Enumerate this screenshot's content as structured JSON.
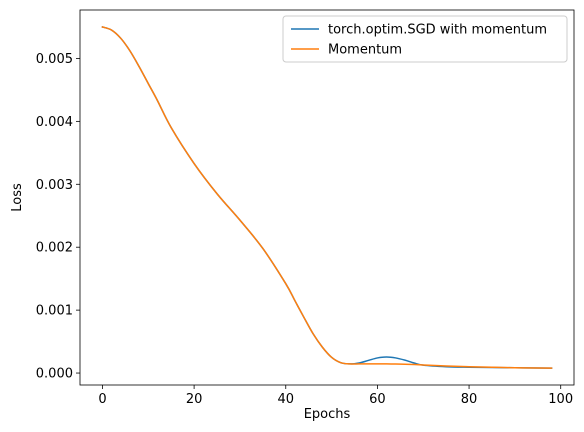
{
  "chart_data": {
    "type": "line",
    "title": "",
    "xlabel": "Epochs",
    "ylabel": "Loss",
    "xlim": [
      -4.9,
      102.9
    ],
    "ylim": [
      -0.00019,
      0.00577
    ],
    "xticks": [
      0,
      20,
      40,
      60,
      80,
      100
    ],
    "xtick_labels": [
      "0",
      "20",
      "40",
      "60",
      "80",
      "100"
    ],
    "yticks": [
      0.0,
      0.001,
      0.002,
      0.003,
      0.004,
      0.005
    ],
    "ytick_labels": [
      "0.000",
      "0.001",
      "0.002",
      "0.003",
      "0.004",
      "0.005"
    ],
    "grid": false,
    "legend_position": "top-right",
    "series": [
      {
        "name": "torch.optim.SGD with momentum",
        "color": "#1f77b4",
        "x": [
          0,
          2,
          4,
          6,
          8,
          10,
          12,
          15,
          20,
          25,
          30,
          35,
          40,
          42,
          44,
          46,
          48,
          50,
          52,
          54,
          56,
          58,
          60,
          62,
          64,
          66,
          68,
          70,
          75,
          80,
          85,
          90,
          95,
          98
        ],
        "y": [
          0.0055,
          0.00545,
          0.00532,
          0.00512,
          0.00487,
          0.0046,
          0.00433,
          0.0039,
          0.00333,
          0.00285,
          0.00243,
          0.00198,
          0.00142,
          0.00115,
          0.00088,
          0.00062,
          0.00041,
          0.00025,
          0.000165,
          0.000145,
          0.00016,
          0.0002,
          0.00024,
          0.000255,
          0.00024,
          0.000205,
          0.00016,
          0.000125,
          0.0001,
          9.2e-05,
          8.8e-05,
          8.4e-05,
          8e-05,
          7.8e-05
        ]
      },
      {
        "name": "Momentum",
        "color": "#ff7f0e",
        "x": [
          0,
          2,
          4,
          6,
          8,
          10,
          12,
          15,
          20,
          25,
          30,
          35,
          40,
          42,
          44,
          46,
          48,
          50,
          52,
          54,
          56,
          58,
          60,
          62,
          64,
          66,
          68,
          70,
          75,
          80,
          85,
          90,
          95,
          98
        ],
        "y": [
          0.0055,
          0.00545,
          0.00532,
          0.00512,
          0.00487,
          0.0046,
          0.00433,
          0.0039,
          0.00333,
          0.00285,
          0.00243,
          0.00198,
          0.00142,
          0.00115,
          0.00088,
          0.00062,
          0.00041,
          0.00025,
          0.000165,
          0.000145,
          0.000145,
          0.000145,
          0.000145,
          0.000145,
          0.000143,
          0.00014,
          0.000135,
          0.000128,
          0.000112,
          0.0001,
          9.2e-05,
          8.5e-05,
          8e-05,
          7.8e-05
        ]
      }
    ]
  }
}
